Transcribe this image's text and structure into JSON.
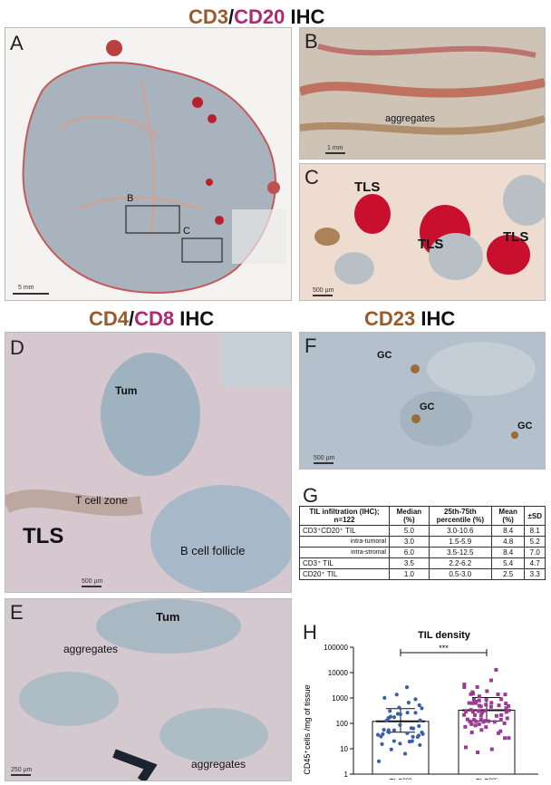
{
  "headers": {
    "top": {
      "a": "CD3",
      "sep": "/",
      "b": "CD20",
      "c": " IHC"
    },
    "mid": {
      "a": "CD4",
      "sep": "/",
      "b": "CD8",
      "c": " IHC"
    },
    "right": {
      "a": "CD23",
      "c": " IHC"
    }
  },
  "panels": {
    "A": {
      "letter": "A",
      "boxB": "B",
      "boxC": "C",
      "scale": "5 mm"
    },
    "B": {
      "letter": "B",
      "label": "aggregates",
      "scale": "1 mm"
    },
    "C": {
      "letter": "C",
      "tls": [
        "TLS",
        "TLS",
        "TLS"
      ],
      "scale": "500 µm"
    },
    "D": {
      "letter": "D",
      "tum": "Tum",
      "tzone": "T cell zone",
      "tls": "TLS",
      "bfol": "B cell follicle",
      "scale": "500 µm"
    },
    "E": {
      "letter": "E",
      "tum": "Tum",
      "agg1": "aggregates",
      "agg2": "aggregates",
      "scale": "250 µm"
    },
    "F": {
      "letter": "F",
      "gc": [
        "GC",
        "GC",
        "GC"
      ],
      "scale": "500 µm"
    },
    "G": {
      "letter": "G"
    },
    "H": {
      "letter": "H"
    }
  },
  "table": {
    "headers": [
      "TIL infiltration (IHC); n=122",
      "Median (%)",
      "25th-75th percentile (%)",
      "Mean (%)",
      "±SD"
    ],
    "rows": [
      {
        "label": "CD3⁺CD20⁺ TIL",
        "median": "5.0",
        "pct": "3.0-10.6",
        "mean": "8.4",
        "sd": "8.1",
        "sub": false
      },
      {
        "label": "intra-tumoral",
        "median": "3.0",
        "pct": "1.5-5.9",
        "mean": "4.8",
        "sd": "5.2",
        "sub": true
      },
      {
        "label": "intra-stromal",
        "median": "6.0",
        "pct": "3.5-12.5",
        "mean": "8.4",
        "sd": "7.0",
        "sub": true
      },
      {
        "label": "CD3⁺ TIL",
        "median": "3.5",
        "pct": "2.2-6.2",
        "mean": "5.4",
        "sd": "4.7",
        "sub": false
      },
      {
        "label": "CD20⁺ TIL",
        "median": "1.0",
        "pct": "0.5-3.0",
        "mean": "2.5",
        "sd": "3.3",
        "sub": false
      }
    ]
  },
  "chart_data": {
    "type": "bar",
    "title": "TIL density",
    "ylabel": "CD45⁺cells /mg of tissue",
    "yscale": "log",
    "ylim": [
      1,
      100000
    ],
    "yticks": [
      "1",
      "10",
      "100",
      "1000",
      "10000",
      "100000"
    ],
    "categories": [
      "TLSneg",
      "TLSpos"
    ],
    "category_main": [
      "TLS",
      "TLS"
    ],
    "category_sup": [
      "neg",
      "pos"
    ],
    "values": [
      120,
      330
    ],
    "significance": "***",
    "colors": {
      "neg": "#3b5ea8",
      "pos": "#9b3b93"
    }
  },
  "colors": {
    "brown": "#9a5a2a",
    "magenta": "#b0286e",
    "tissue": "#aab4be",
    "stroma": "#e8e6e4"
  }
}
